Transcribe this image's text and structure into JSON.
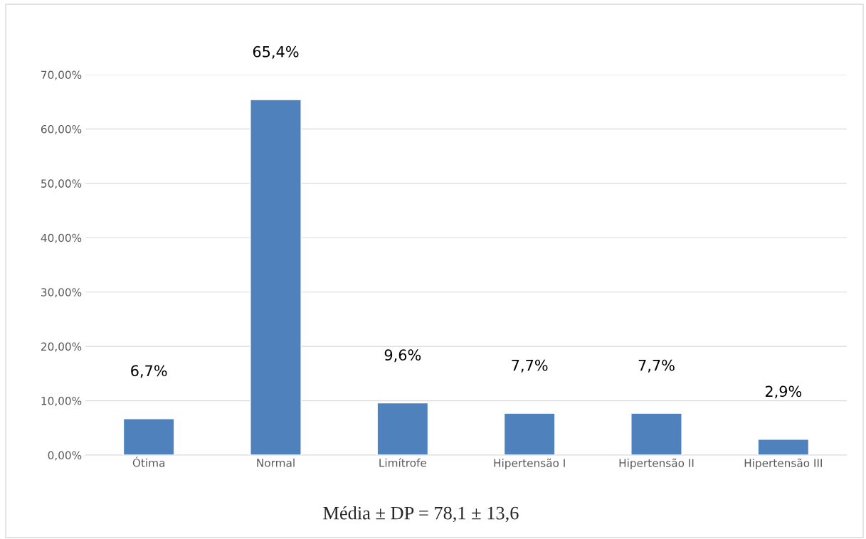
{
  "chart_data": {
    "type": "bar",
    "categories": [
      "Ótima",
      "Normal",
      "Limítrofe",
      "Hipertensão I",
      "Hipertensão II",
      "Hipertensão III"
    ],
    "values": [
      6.7,
      65.4,
      9.6,
      7.7,
      7.7,
      2.9
    ],
    "value_labels": [
      "6,7%",
      "65,4%",
      "9,6%",
      "7,7%",
      "7,7%",
      "2,9%"
    ],
    "color": "#4f81bd",
    "ylim": [
      0,
      70
    ],
    "yticks": [
      {
        "value": 0,
        "label": "0,00%"
      },
      {
        "value": 10,
        "label": "10,00%"
      },
      {
        "value": 20,
        "label": "20,00%"
      },
      {
        "value": 30,
        "label": "30,00%"
      },
      {
        "value": 40,
        "label": "40,00%"
      },
      {
        "value": 50,
        "label": "50,00%"
      },
      {
        "value": 60,
        "label": "60,00%"
      },
      {
        "value": 70,
        "label": "70,00%"
      }
    ],
    "grid": "y",
    "legend": false,
    "annotations": [
      "Média ± DP = 78,1 ± 13,6"
    ]
  }
}
